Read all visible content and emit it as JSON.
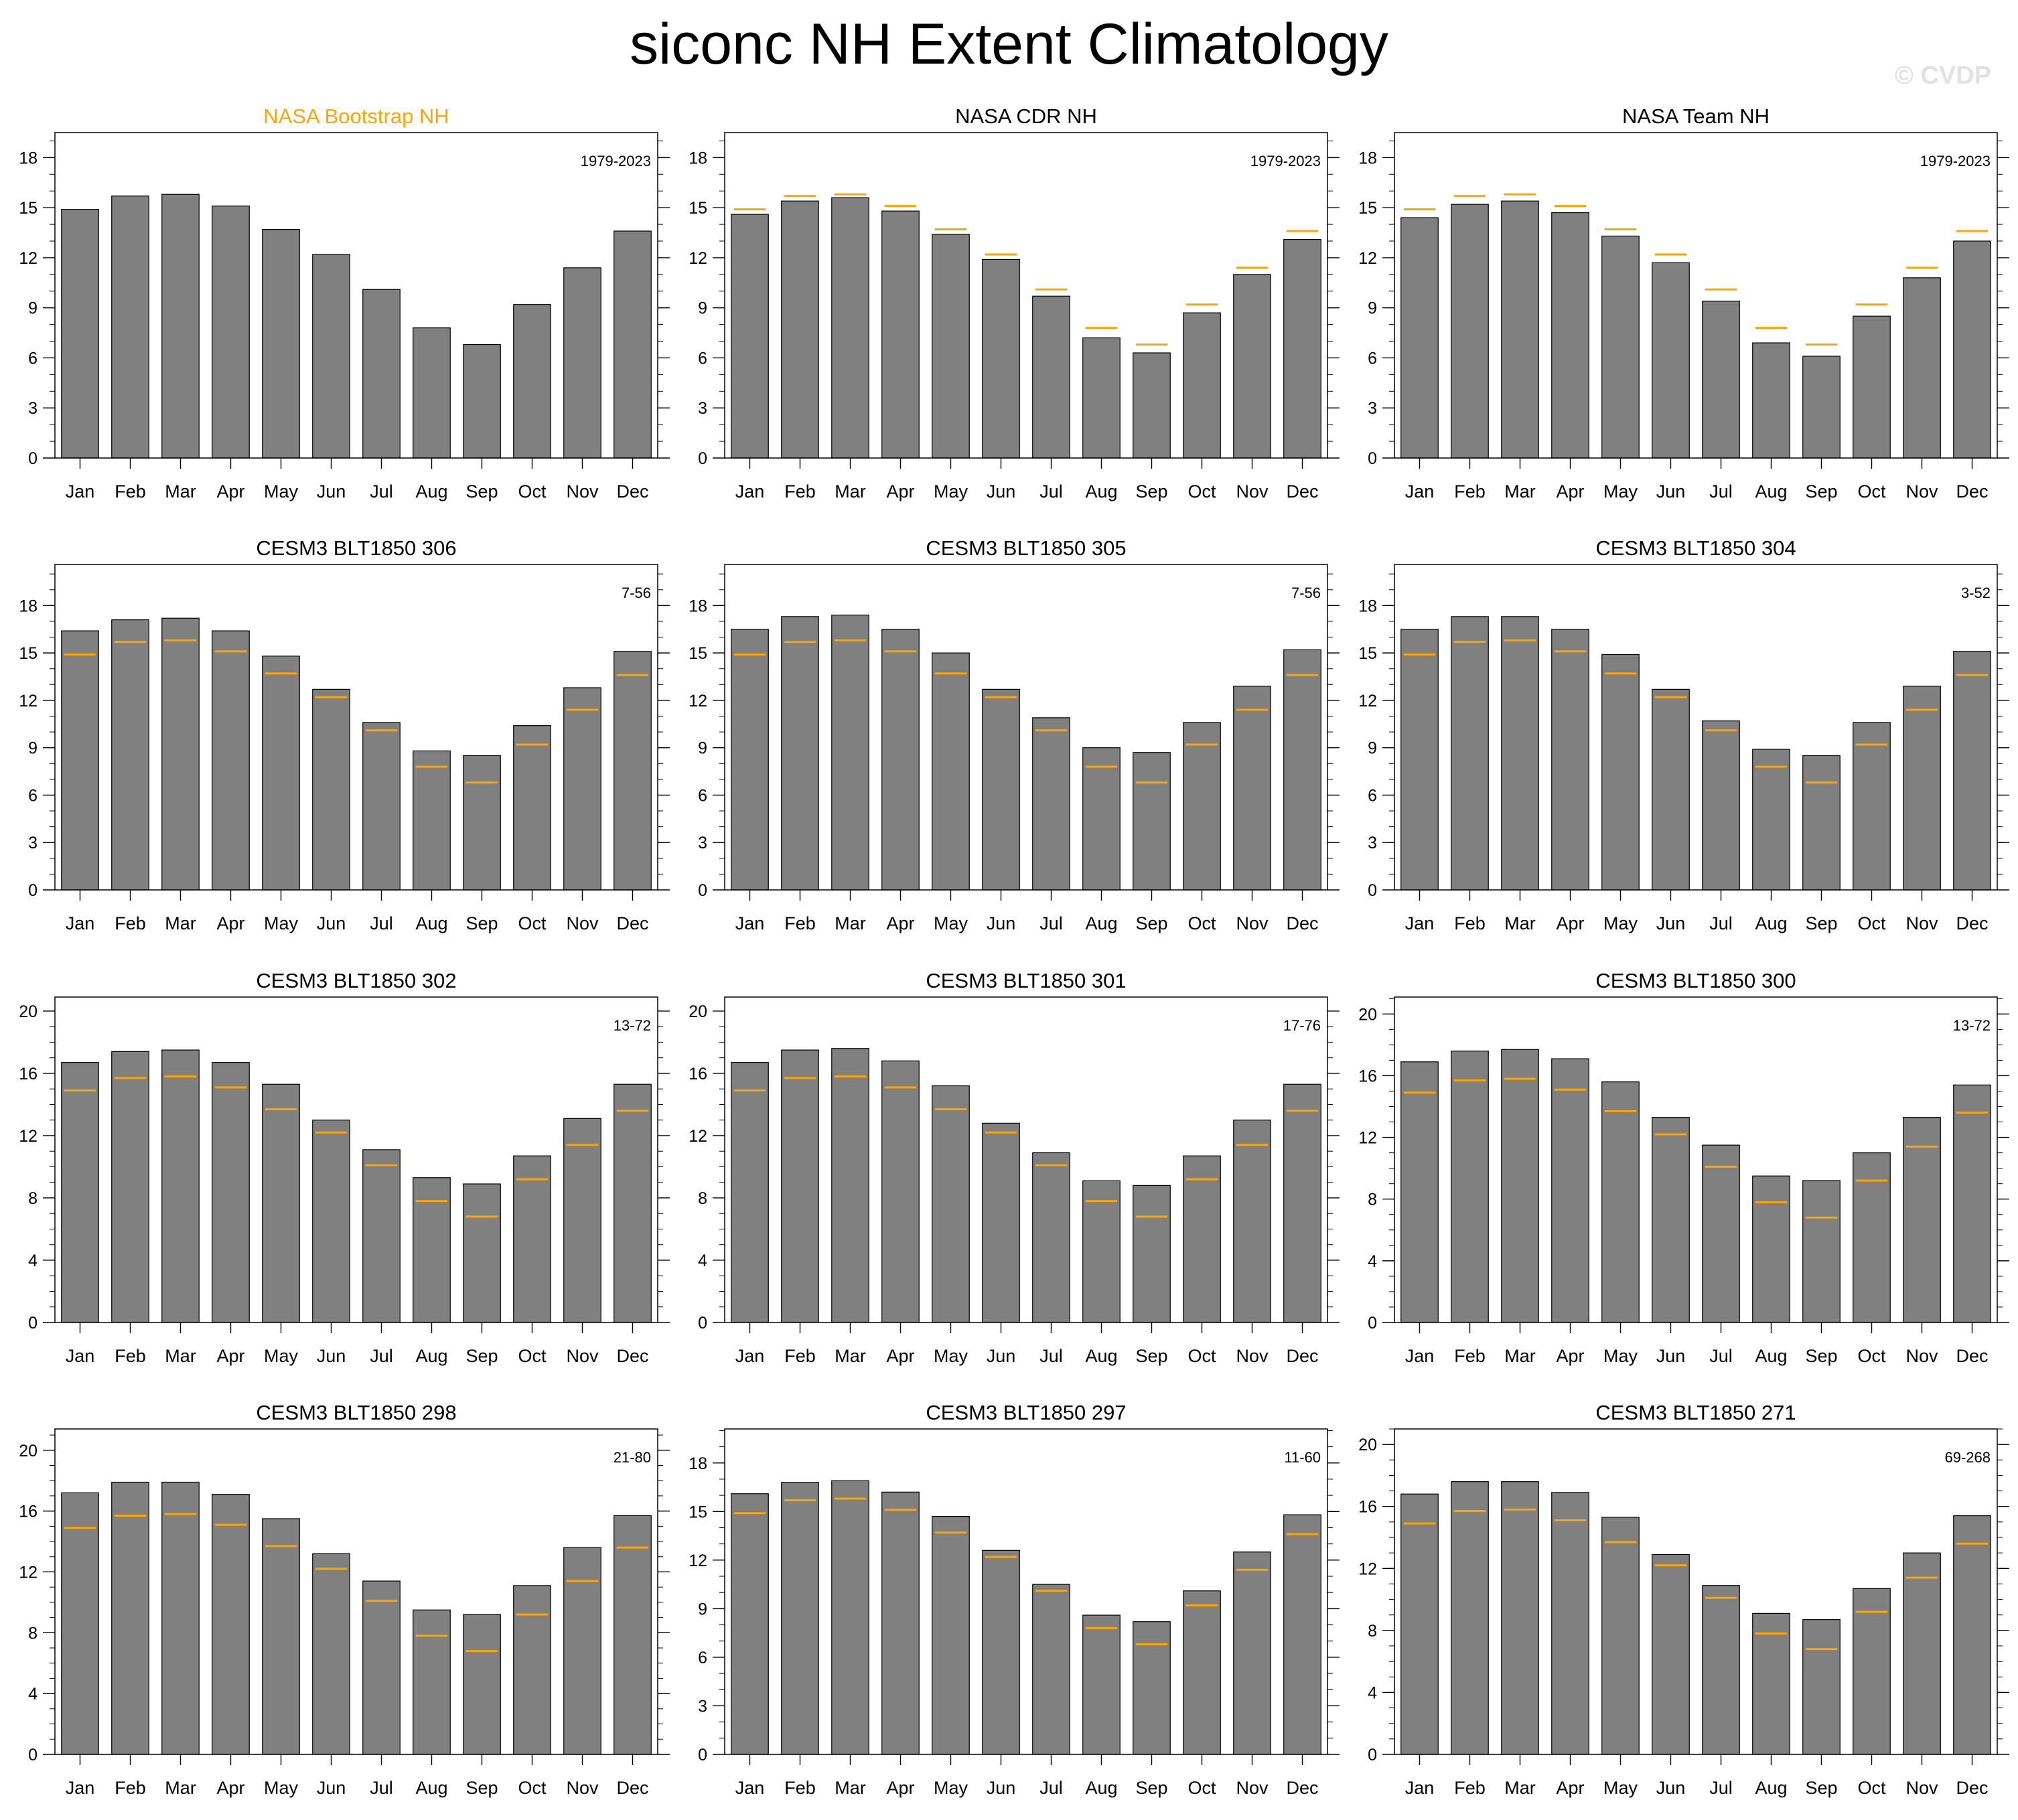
{
  "page": {
    "title": "siconc NH Extent Climatology",
    "watermark": "© CVDP"
  },
  "colors": {
    "bar_fill": "#808080",
    "bar_edge": "#000000",
    "reference_line": "#ffa500",
    "highlight_title": "#ffa500"
  },
  "chart_data": [
    {
      "type": "bar",
      "title": "NASA Bootstrap NH",
      "title_highlight": true,
      "period": "1979-2023",
      "categories": [
        "Jan",
        "Feb",
        "Mar",
        "Apr",
        "May",
        "Jun",
        "Jul",
        "Aug",
        "Sep",
        "Oct",
        "Nov",
        "Dec"
      ],
      "values": [
        14.9,
        15.7,
        15.8,
        15.1,
        13.7,
        12.2,
        10.1,
        7.8,
        6.8,
        9.2,
        11.4,
        13.6
      ],
      "reference_values": null,
      "ylim": [
        0,
        19.5
      ],
      "yticks": [
        0,
        3,
        6,
        9,
        12,
        15,
        18
      ]
    },
    {
      "type": "bar",
      "title": "NASA CDR NH",
      "title_highlight": false,
      "period": "1979-2023",
      "categories": [
        "Jan",
        "Feb",
        "Mar",
        "Apr",
        "May",
        "Jun",
        "Jul",
        "Aug",
        "Sep",
        "Oct",
        "Nov",
        "Dec"
      ],
      "values": [
        14.6,
        15.4,
        15.6,
        14.8,
        13.4,
        11.9,
        9.7,
        7.2,
        6.3,
        8.7,
        11.0,
        13.1
      ],
      "reference_values": [
        14.9,
        15.7,
        15.8,
        15.1,
        13.7,
        12.2,
        10.1,
        7.8,
        6.8,
        9.2,
        11.4,
        13.6
      ],
      "ylim": [
        0,
        19.5
      ],
      "yticks": [
        0,
        3,
        6,
        9,
        12,
        15,
        18
      ]
    },
    {
      "type": "bar",
      "title": "NASA Team NH",
      "title_highlight": false,
      "period": "1979-2023",
      "categories": [
        "Jan",
        "Feb",
        "Mar",
        "Apr",
        "May",
        "Jun",
        "Jul",
        "Aug",
        "Sep",
        "Oct",
        "Nov",
        "Dec"
      ],
      "values": [
        14.4,
        15.2,
        15.4,
        14.7,
        13.3,
        11.7,
        9.4,
        6.9,
        6.1,
        8.5,
        10.8,
        13.0
      ],
      "reference_values": [
        14.9,
        15.7,
        15.8,
        15.1,
        13.7,
        12.2,
        10.1,
        7.8,
        6.8,
        9.2,
        11.4,
        13.6
      ],
      "ylim": [
        0,
        19.5
      ],
      "yticks": [
        0,
        3,
        6,
        9,
        12,
        15,
        18
      ]
    },
    {
      "type": "bar",
      "title": "CESM3 BLT1850 306",
      "title_highlight": false,
      "period": "7-56",
      "categories": [
        "Jan",
        "Feb",
        "Mar",
        "Apr",
        "May",
        "Jun",
        "Jul",
        "Aug",
        "Sep",
        "Oct",
        "Nov",
        "Dec"
      ],
      "values": [
        16.4,
        17.1,
        17.2,
        16.4,
        14.8,
        12.7,
        10.6,
        8.8,
        8.5,
        10.4,
        12.8,
        15.1
      ],
      "reference_values": [
        14.9,
        15.7,
        15.8,
        15.1,
        13.7,
        12.2,
        10.1,
        7.8,
        6.8,
        9.2,
        11.4,
        13.6
      ],
      "ylim": [
        0,
        20.6
      ],
      "yticks": [
        0,
        3,
        6,
        9,
        12,
        15,
        18
      ]
    },
    {
      "type": "bar",
      "title": "CESM3 BLT1850 305",
      "title_highlight": false,
      "period": "7-56",
      "categories": [
        "Jan",
        "Feb",
        "Mar",
        "Apr",
        "May",
        "Jun",
        "Jul",
        "Aug",
        "Sep",
        "Oct",
        "Nov",
        "Dec"
      ],
      "values": [
        16.5,
        17.3,
        17.4,
        16.5,
        15.0,
        12.7,
        10.9,
        9.0,
        8.7,
        10.6,
        12.9,
        15.2
      ],
      "reference_values": [
        14.9,
        15.7,
        15.8,
        15.1,
        13.7,
        12.2,
        10.1,
        7.8,
        6.8,
        9.2,
        11.4,
        13.6
      ],
      "ylim": [
        0,
        20.6
      ],
      "yticks": [
        0,
        3,
        6,
        9,
        12,
        15,
        18
      ]
    },
    {
      "type": "bar",
      "title": "CESM3 BLT1850 304",
      "title_highlight": false,
      "period": "3-52",
      "categories": [
        "Jan",
        "Feb",
        "Mar",
        "Apr",
        "May",
        "Jun",
        "Jul",
        "Aug",
        "Sep",
        "Oct",
        "Nov",
        "Dec"
      ],
      "values": [
        16.5,
        17.3,
        17.3,
        16.5,
        14.9,
        12.7,
        10.7,
        8.9,
        8.5,
        10.6,
        12.9,
        15.1
      ],
      "reference_values": [
        14.9,
        15.7,
        15.8,
        15.1,
        13.7,
        12.2,
        10.1,
        7.8,
        6.8,
        9.2,
        11.4,
        13.6
      ],
      "ylim": [
        0,
        20.6
      ],
      "yticks": [
        0,
        3,
        6,
        9,
        12,
        15,
        18
      ]
    },
    {
      "type": "bar",
      "title": "CESM3 BLT1850 302",
      "title_highlight": false,
      "period": "13-72",
      "categories": [
        "Jan",
        "Feb",
        "Mar",
        "Apr",
        "May",
        "Jun",
        "Jul",
        "Aug",
        "Sep",
        "Oct",
        "Nov",
        "Dec"
      ],
      "values": [
        16.7,
        17.4,
        17.5,
        16.7,
        15.3,
        13.0,
        11.1,
        9.3,
        8.9,
        10.7,
        13.1,
        15.3
      ],
      "reference_values": [
        14.9,
        15.7,
        15.8,
        15.1,
        13.7,
        12.2,
        10.1,
        7.8,
        6.8,
        9.2,
        11.4,
        13.6
      ],
      "ylim": [
        0,
        20.9
      ],
      "yticks": [
        0,
        4,
        8,
        12,
        16,
        20
      ]
    },
    {
      "type": "bar",
      "title": "CESM3 BLT1850 301",
      "title_highlight": false,
      "period": "17-76",
      "categories": [
        "Jan",
        "Feb",
        "Mar",
        "Apr",
        "May",
        "Jun",
        "Jul",
        "Aug",
        "Sep",
        "Oct",
        "Nov",
        "Dec"
      ],
      "values": [
        16.7,
        17.5,
        17.6,
        16.8,
        15.2,
        12.8,
        10.9,
        9.1,
        8.8,
        10.7,
        13.0,
        15.3
      ],
      "reference_values": [
        14.9,
        15.7,
        15.8,
        15.1,
        13.7,
        12.2,
        10.1,
        7.8,
        6.8,
        9.2,
        11.4,
        13.6
      ],
      "ylim": [
        0,
        20.9
      ],
      "yticks": [
        0,
        4,
        8,
        12,
        16,
        20
      ]
    },
    {
      "type": "bar",
      "title": "CESM3 BLT1850 300",
      "title_highlight": false,
      "period": "13-72",
      "categories": [
        "Jan",
        "Feb",
        "Mar",
        "Apr",
        "May",
        "Jun",
        "Jul",
        "Aug",
        "Sep",
        "Oct",
        "Nov",
        "Dec"
      ],
      "values": [
        16.9,
        17.6,
        17.7,
        17.1,
        15.6,
        13.3,
        11.5,
        9.5,
        9.2,
        11.0,
        13.3,
        15.4
      ],
      "reference_values": [
        14.9,
        15.7,
        15.8,
        15.1,
        13.7,
        12.2,
        10.1,
        7.8,
        6.8,
        9.2,
        11.4,
        13.6
      ],
      "ylim": [
        0,
        21.1
      ],
      "yticks": [
        0,
        4,
        8,
        12,
        16,
        20
      ]
    },
    {
      "type": "bar",
      "title": "CESM3 BLT1850 298",
      "title_highlight": false,
      "period": "21-80",
      "categories": [
        "Jan",
        "Feb",
        "Mar",
        "Apr",
        "May",
        "Jun",
        "Jul",
        "Aug",
        "Sep",
        "Oct",
        "Nov",
        "Dec"
      ],
      "values": [
        17.2,
        17.9,
        17.9,
        17.1,
        15.5,
        13.2,
        11.4,
        9.5,
        9.2,
        11.1,
        13.6,
        15.7
      ],
      "reference_values": [
        14.9,
        15.7,
        15.8,
        15.1,
        13.7,
        12.2,
        10.1,
        7.8,
        6.8,
        9.2,
        11.4,
        13.6
      ],
      "ylim": [
        0,
        21.4
      ],
      "yticks": [
        0,
        4,
        8,
        12,
        16,
        20
      ]
    },
    {
      "type": "bar",
      "title": "CESM3 BLT1850 297",
      "title_highlight": false,
      "period": "11-60",
      "categories": [
        "Jan",
        "Feb",
        "Mar",
        "Apr",
        "May",
        "Jun",
        "Jul",
        "Aug",
        "Sep",
        "Oct",
        "Nov",
        "Dec"
      ],
      "values": [
        16.1,
        16.8,
        16.9,
        16.2,
        14.7,
        12.6,
        10.5,
        8.6,
        8.2,
        10.1,
        12.5,
        14.8
      ],
      "reference_values": [
        14.9,
        15.7,
        15.8,
        15.1,
        13.7,
        12.2,
        10.1,
        7.8,
        6.8,
        9.2,
        11.4,
        13.6
      ],
      "ylim": [
        0,
        20.1
      ],
      "yticks": [
        0,
        3,
        6,
        9,
        12,
        15,
        18
      ]
    },
    {
      "type": "bar",
      "title": "CESM3 BLT1850 271",
      "title_highlight": false,
      "period": "69-268",
      "categories": [
        "Jan",
        "Feb",
        "Mar",
        "Apr",
        "May",
        "Jun",
        "Jul",
        "Aug",
        "Sep",
        "Oct",
        "Nov",
        "Dec"
      ],
      "values": [
        16.8,
        17.6,
        17.6,
        16.9,
        15.3,
        12.9,
        10.9,
        9.1,
        8.7,
        10.7,
        13.0,
        15.4
      ],
      "reference_values": [
        14.9,
        15.7,
        15.8,
        15.1,
        13.7,
        12.2,
        10.1,
        7.8,
        6.8,
        9.2,
        11.4,
        13.6
      ],
      "ylim": [
        0,
        21.0
      ],
      "yticks": [
        0,
        4,
        8,
        12,
        16,
        20
      ]
    }
  ]
}
